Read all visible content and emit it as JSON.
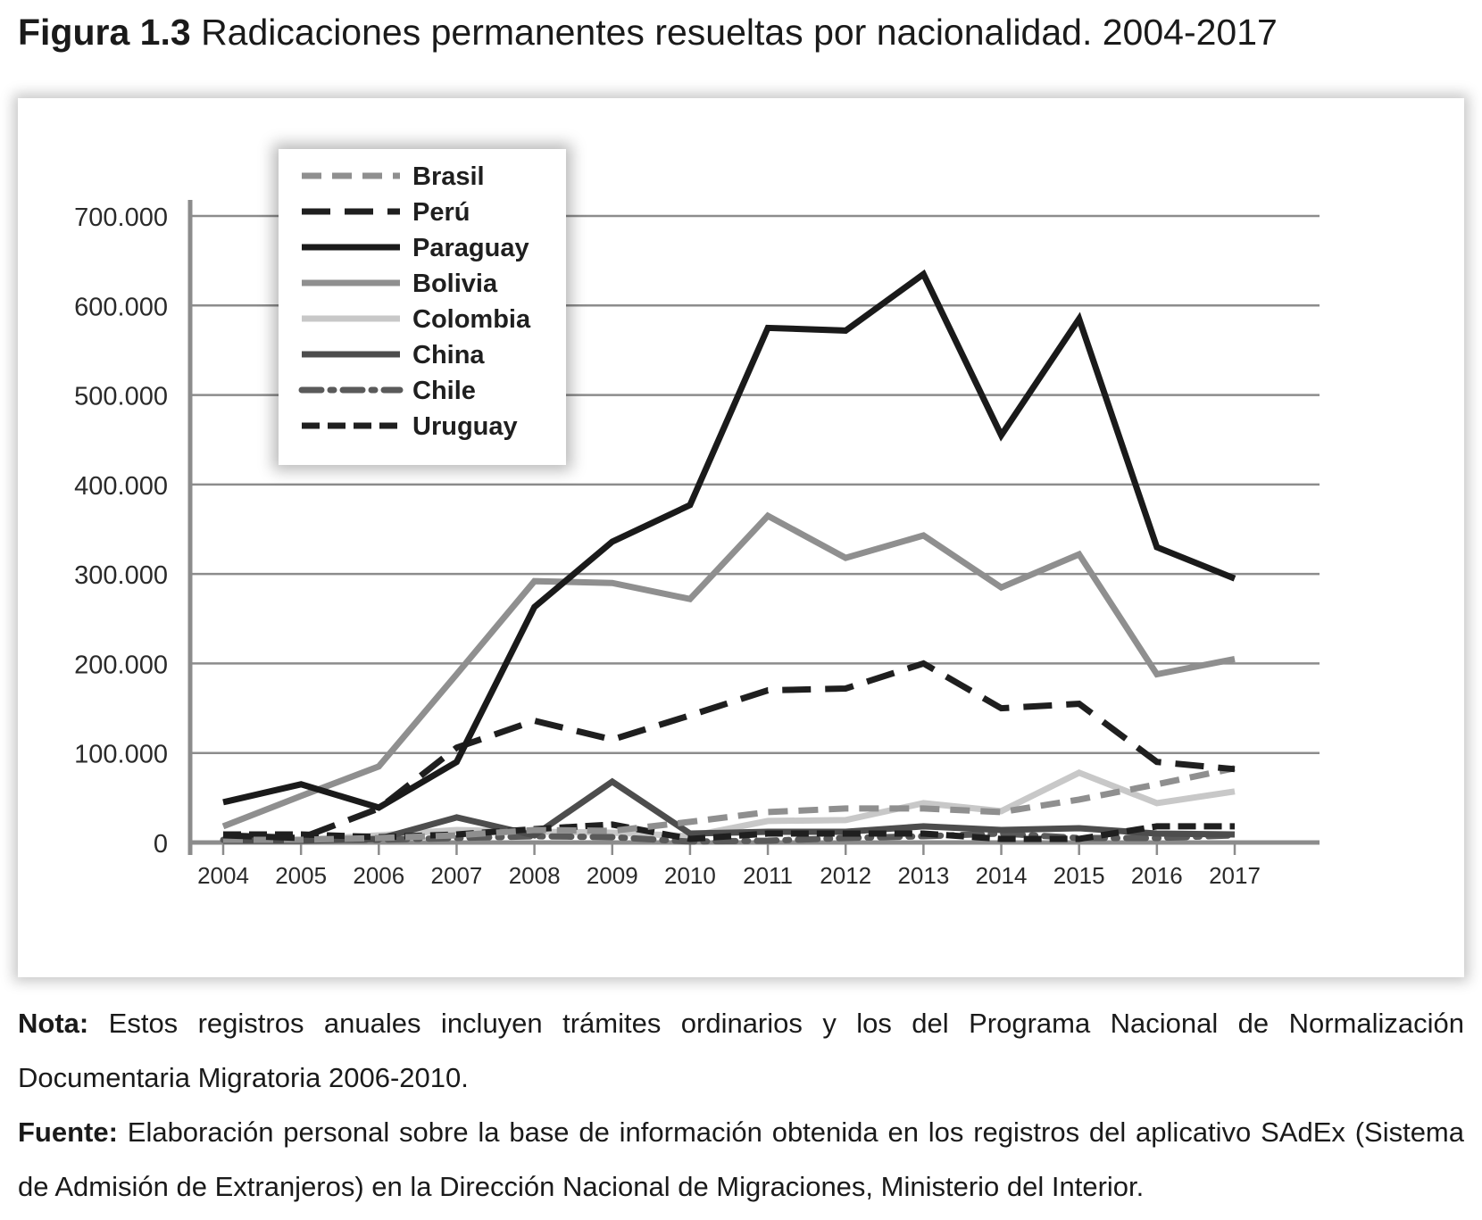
{
  "figure": {
    "label": "Figura 1.3",
    "title": "Radicaciones permanentes resueltas por nacionalidad. 2004-2017"
  },
  "note": {
    "label": "Nota:",
    "text": "Estos registros anuales incluyen trámites ordinarios y los del Programa Nacional de Normalización Documentaria Migratoria 2006-2010."
  },
  "source": {
    "label": "Fuente:",
    "text": "Elaboración personal sobre la base de información obtenida en los registros del aplicativo SAdEx (Sistema de Admisión de Extranjeros) en la Dirección Nacional de Migraciones, Ministerio del Interior."
  },
  "chart_data": {
    "type": "line",
    "title": "Radicaciones permanentes resueltas por nacionalidad. 2004-2017",
    "xlabel": "",
    "ylabel": "",
    "ylim": [
      0,
      700000
    ],
    "yticks": [
      0,
      100000,
      200000,
      300000,
      400000,
      500000,
      600000,
      700000
    ],
    "ytick_labels": [
      "0",
      "100.000",
      "200.000",
      "300.000",
      "400.000",
      "500.000",
      "600.000",
      "700.000"
    ],
    "grid": "horizontal",
    "legend_position": "top-left",
    "categories": [
      "2004",
      "2005",
      "2006",
      "2007",
      "2008",
      "2009",
      "2010",
      "2011",
      "2012",
      "2013",
      "2014",
      "2015",
      "2016",
      "2017"
    ],
    "series": [
      {
        "name": "Brasil",
        "color": "#8f8f8f",
        "style": "dashed",
        "values": [
          3000,
          3000,
          5000,
          8000,
          14000,
          13000,
          23000,
          34000,
          38000,
          38000,
          34000,
          48000,
          65000,
          83000
        ]
      },
      {
        "name": "Perú",
        "color": "#1f1f1f",
        "style": "long-dashed",
        "values": [
          8000,
          5000,
          38000,
          106000,
          136000,
          115000,
          142000,
          170000,
          172000,
          200000,
          150000,
          155000,
          90000,
          82000
        ]
      },
      {
        "name": "Paraguay",
        "color": "#1a1a1a",
        "style": "solid",
        "values": [
          45000,
          65000,
          39000,
          90000,
          263000,
          336000,
          377000,
          575000,
          572000,
          635000,
          455000,
          585000,
          330000,
          295000
        ]
      },
      {
        "name": "Bolivia",
        "color": "#8f8f8f",
        "style": "solid",
        "values": [
          18000,
          52000,
          85000,
          188000,
          292000,
          290000,
          272000,
          365000,
          318000,
          343000,
          285000,
          322000,
          188000,
          205000
        ]
      },
      {
        "name": "Colombia",
        "color": "#c8c8c8",
        "style": "solid",
        "values": [
          2000,
          3000,
          8000,
          14000,
          12000,
          11000,
          7000,
          24000,
          25000,
          44000,
          35000,
          78000,
          44000,
          57000
        ]
      },
      {
        "name": "China",
        "color": "#4d4d4d",
        "style": "solid",
        "values": [
          2000,
          2000,
          4000,
          28000,
          8000,
          68000,
          10000,
          12000,
          12000,
          18000,
          14000,
          16000,
          10000,
          9000
        ]
      },
      {
        "name": "Chile",
        "color": "#5a5a5a",
        "style": "dash-dot",
        "values": [
          3000,
          3000,
          3000,
          5000,
          7000,
          6000,
          1000,
          2000,
          5000,
          7000,
          10000,
          5000,
          5000,
          8000
        ]
      },
      {
        "name": "Uruguay",
        "color": "#1f1f1f",
        "style": "short-dashed",
        "values": [
          9000,
          9000,
          6000,
          9000,
          15000,
          20000,
          4000,
          10000,
          10000,
          10000,
          4000,
          4000,
          18000,
          18000
        ]
      }
    ]
  }
}
